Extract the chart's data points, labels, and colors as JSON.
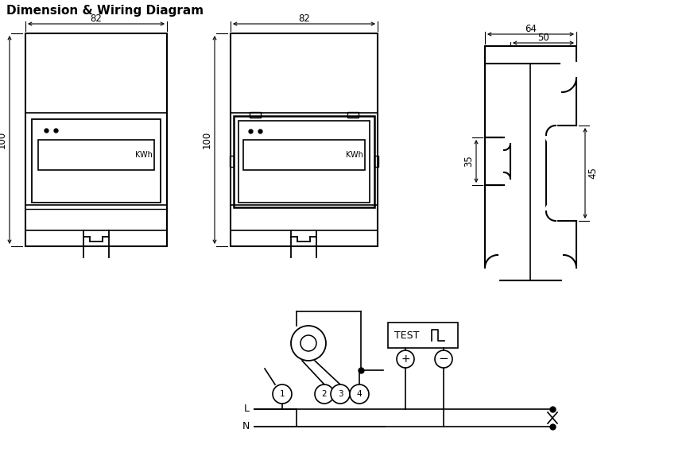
{
  "title": "Dimension & Wiring Diagram",
  "bg_color": "#ffffff",
  "line_color": "#000000",
  "fig_width": 8.73,
  "fig_height": 5.74,
  "dim82_1": "82",
  "dim82_2": "82",
  "dim100_1": "100",
  "dim100_2": "100",
  "dim64": "64",
  "dim50": "50",
  "dim35": "35",
  "dim45": "45",
  "kwh_label": "KWh",
  "test_label": "TEST",
  "L_label": "L",
  "N_label": "N"
}
